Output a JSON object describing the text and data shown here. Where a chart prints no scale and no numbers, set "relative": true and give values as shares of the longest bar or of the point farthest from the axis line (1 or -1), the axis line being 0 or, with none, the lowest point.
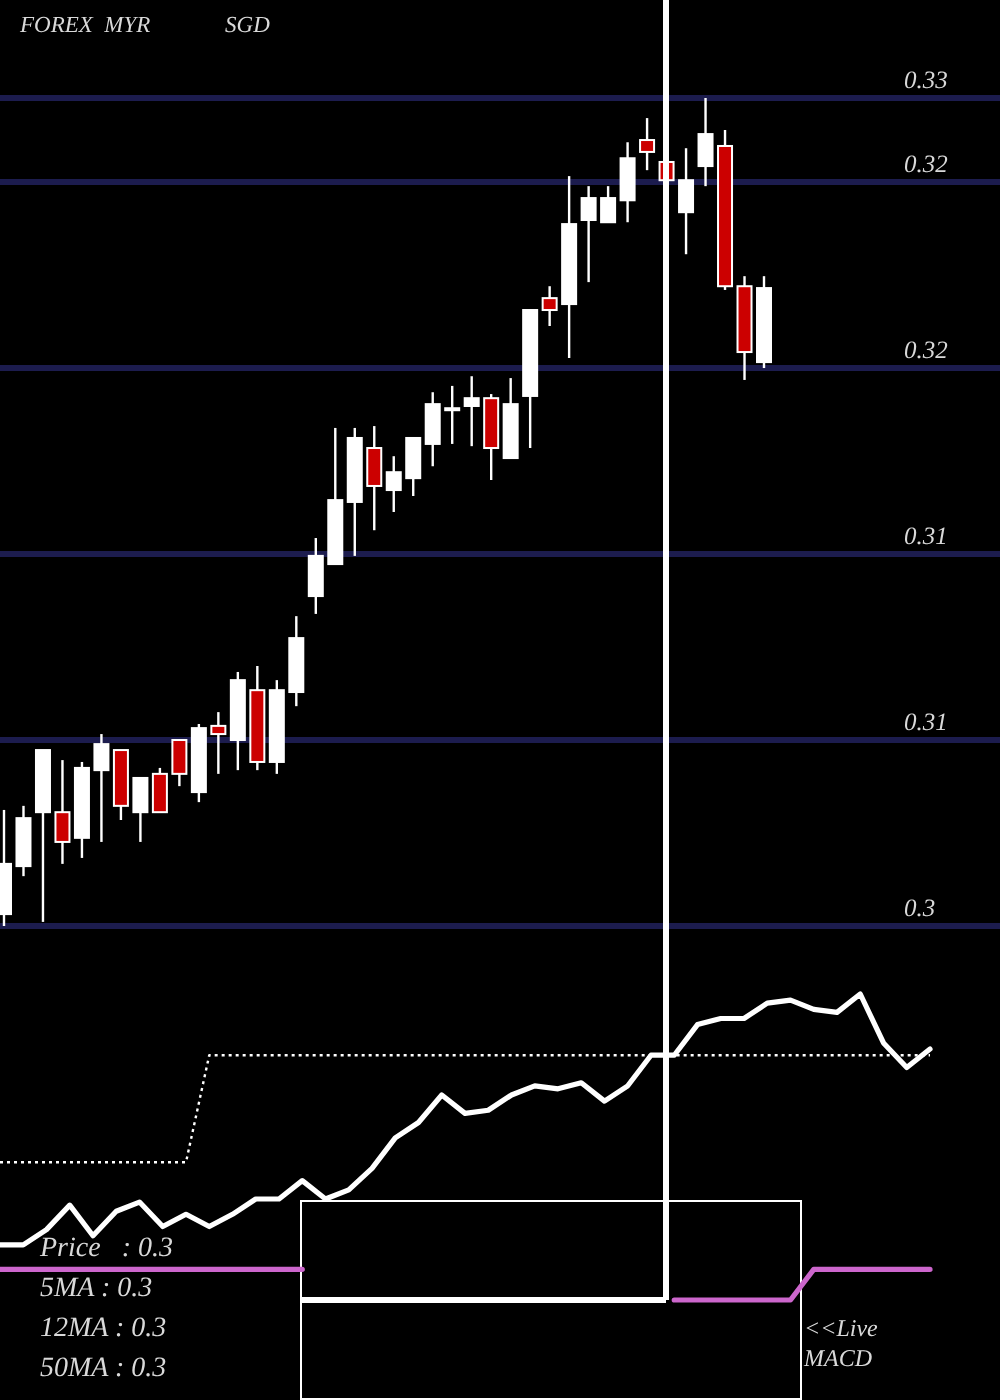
{
  "chart_data": [
    {
      "type": "candlestick",
      "title": "FOREX  MYR             SGD",
      "categories": [
        null,
        null,
        null,
        null,
        null,
        null,
        null,
        null,
        null,
        null,
        null,
        null,
        null,
        null,
        null,
        null,
        null,
        null,
        null,
        null,
        null,
        null,
        null,
        null,
        null,
        null,
        null,
        null,
        null,
        null,
        null,
        null,
        null,
        null,
        null,
        null,
        null,
        null,
        null,
        null
      ],
      "ohlc": [
        [
          0.30432,
          0.30712,
          0.304,
          0.30567
        ],
        [
          0.30561,
          0.30723,
          0.30534,
          0.3069
        ],
        [
          0.30706,
          0.30873,
          0.30411,
          0.30873
        ],
        [
          0.30706,
          0.30846,
          0.30567,
          0.30626
        ],
        [
          0.30637,
          0.30841,
          0.30583,
          0.30825
        ],
        [
          0.30819,
          0.30916,
          0.30626,
          0.30889
        ],
        [
          0.30873,
          0.30873,
          0.30685,
          0.30723
        ],
        [
          0.30706,
          0.30798,
          0.30626,
          0.30798
        ],
        [
          0.30809,
          0.30825,
          0.30706,
          0.30706
        ],
        [
          0.309,
          0.309,
          0.30776,
          0.30809
        ],
        [
          0.3076,
          0.30943,
          0.30733,
          0.30932
        ],
        [
          0.30938,
          0.30975,
          0.30809,
          0.30916
        ],
        [
          0.309,
          0.31083,
          0.30819,
          0.31061
        ],
        [
          0.31034,
          0.31099,
          0.30819,
          0.30841
        ],
        [
          0.30841,
          0.31061,
          0.30809,
          0.31034
        ],
        [
          0.31029,
          0.31233,
          0.30991,
          0.31174
        ],
        [
          0.31287,
          0.31443,
          0.31239,
          0.31395
        ],
        [
          0.31373,
          0.31739,
          0.31373,
          0.31545
        ],
        [
          0.3154,
          0.31739,
          0.31395,
          0.31712
        ],
        [
          0.31685,
          0.31744,
          0.31464,
          0.31583
        ],
        [
          0.31572,
          0.31663,
          0.31513,
          0.3162
        ],
        [
          0.31604,
          0.31712,
          0.31556,
          0.31712
        ],
        [
          0.31696,
          0.31835,
          0.31636,
          0.31803
        ],
        [
          0.31792,
          0.31852,
          0.31696,
          0.31792
        ],
        [
          0.31798,
          0.31878,
          0.3169,
          0.31819
        ],
        [
          0.31819,
          0.3183,
          0.31599,
          0.31685
        ],
        [
          0.31658,
          0.31873,
          0.31658,
          0.31803
        ],
        [
          0.31825,
          0.32056,
          0.31685,
          0.32056
        ],
        [
          0.32088,
          0.3212,
          0.32013,
          0.32056
        ],
        [
          0.32072,
          0.32416,
          0.31927,
          0.32287
        ],
        [
          0.32298,
          0.32389,
          0.32131,
          0.32357
        ],
        [
          0.32292,
          0.32389,
          0.32292,
          0.32357
        ],
        [
          0.32351,
          0.32507,
          0.32292,
          0.32464
        ],
        [
          0.32513,
          0.32572,
          0.32432,
          0.32481
        ],
        [
          0.32454,
          0.32491,
          0.3219,
          0.32405
        ],
        [
          0.32319,
          0.32491,
          0.32206,
          0.32405
        ],
        [
          0.32443,
          0.32626,
          0.32389,
          0.32529
        ],
        [
          0.32497,
          0.3254,
          0.3211,
          0.3212
        ],
        [
          0.3212,
          0.32147,
          0.31868,
          0.31943
        ],
        [
          0.31916,
          0.32147,
          0.319,
          0.32115
        ]
      ],
      "colors": [
        "#ffffff",
        "#ffffff",
        "#ffffff",
        "#cc0000",
        "#ffffff",
        "#ffffff",
        "#cc0000",
        "#ffffff",
        "#cc0000",
        "#cc0000",
        "#ffffff",
        "#cc0000",
        "#ffffff",
        "#cc0000",
        "#ffffff",
        "#ffffff",
        "#ffffff",
        "#ffffff",
        "#ffffff",
        "#cc0000",
        "#ffffff",
        "#ffffff",
        "#ffffff",
        "#ffffff",
        "#ffffff",
        "#cc0000",
        "#ffffff",
        "#ffffff",
        "#cc0000",
        "#ffffff",
        "#ffffff",
        "#ffffff",
        "#ffffff",
        "#cc0000",
        "#cc0000",
        "#ffffff",
        "#ffffff",
        "#cc0000",
        "#cc0000",
        "#ffffff"
      ],
      "ylim": [
        0.304,
        0.32626
      ],
      "yticks": [
        {
          "value": 0.304,
          "label": "0.3"
        },
        {
          "value": 0.309,
          "label": "0.31"
        },
        {
          "value": 0.314,
          "label": "0.31"
        },
        {
          "value": 0.319,
          "label": "0.32"
        },
        {
          "value": 0.324,
          "label": "0.32"
        },
        {
          "value": 0.32626,
          "label": "0.33"
        }
      ],
      "grid": "y",
      "tick_labels": "y"
    },
    {
      "type": "line",
      "relative": true,
      "categories": [
        null,
        null,
        null,
        null,
        null,
        null,
        null,
        null,
        null,
        null,
        null,
        null,
        null,
        null,
        null,
        null,
        null,
        null,
        null,
        null,
        null,
        null,
        null,
        null,
        null,
        null,
        null,
        null,
        null,
        null,
        null,
        null,
        null,
        null,
        null,
        null,
        null,
        null,
        null,
        null,
        null
      ],
      "series": [
        {
          "color": "#ffffff",
          "values": [
            0.18,
            0.18,
            0.23,
            0.31,
            0.21,
            0.29,
            0.32,
            0.24,
            0.28,
            0.24,
            0.28,
            0.33,
            0.33,
            0.39,
            0.33,
            0.36,
            0.43,
            0.53,
            0.58,
            0.67,
            0.61,
            0.62,
            0.67,
            0.7,
            0.69,
            0.71,
            0.65,
            0.7,
            0.8,
            0.8,
            0.9,
            0.92,
            0.92,
            0.97,
            0.98,
            0.95,
            0.94,
            1,
            0.84,
            0.76,
            0.82
          ]
        },
        {
          "color": "#ffffff",
          "line_style": "dotted",
          "values": [
            0.45,
            0.45,
            0.45,
            0.45,
            0.45,
            0.45,
            0.45,
            0.45,
            0.45,
            0.8,
            0.8,
            0.8,
            0.8,
            0.8,
            0.8,
            0.8,
            0.8,
            0.8,
            0.8,
            0.8,
            0.8,
            0.8,
            0.8,
            0.8,
            0.8,
            0.8,
            0.8,
            0.8,
            0.8,
            0.8,
            0.8,
            0.8,
            0.8,
            0.8,
            0.8,
            0.8,
            0.8,
            0.8,
            0.8,
            0.8,
            0.8
          ]
        },
        {
          "color": "#cc66cc",
          "values": [
            0.1,
            0.1,
            0.1,
            0.1,
            0.1,
            0.1,
            0.1,
            0.1,
            0.1,
            0.1,
            0.1,
            0.1,
            0.1,
            0.1,
            null,
            null,
            null,
            null,
            null,
            null,
            null,
            null,
            null,
            null,
            null,
            null,
            null,
            null,
            null,
            0,
            0,
            0,
            0,
            0,
            0,
            0.1,
            0.1,
            0.1,
            0.1,
            0.1,
            0.1
          ]
        }
      ],
      "line_style": "solid",
      "annotations": [
        "Price   : 0.3",
        "5MA : 0.3",
        "12MA : 0.3",
        "50MA : 0.3",
        "<<Live MACD"
      ]
    }
  ]
}
